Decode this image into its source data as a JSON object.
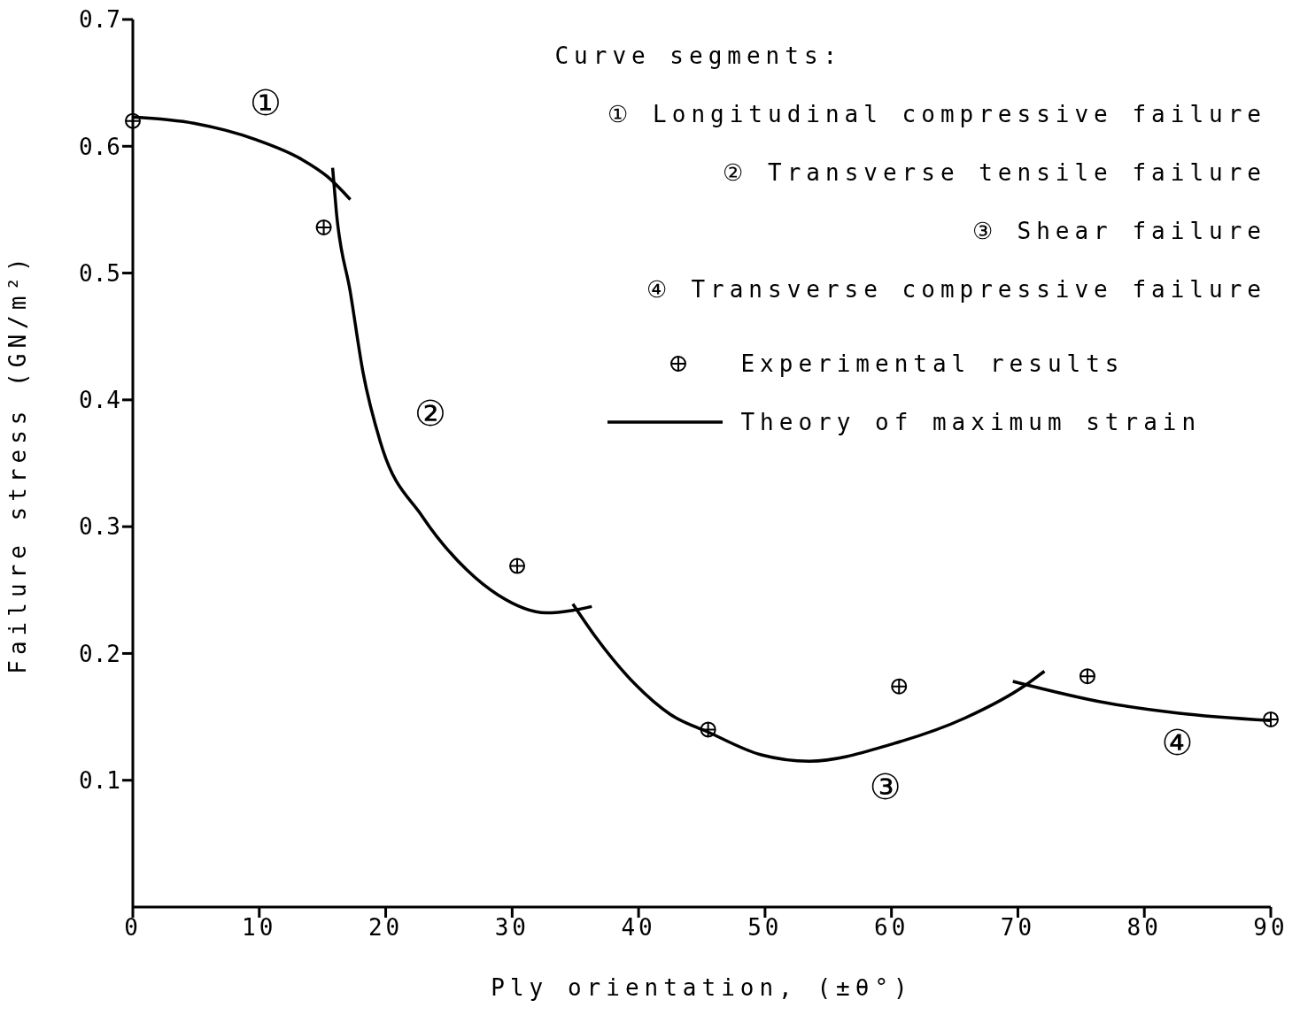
{
  "chart_data": {
    "type": "line",
    "xlabel": "Ply orientation, (±θ°)",
    "ylabel": "Failure stress (GN/m²)",
    "xlim": [
      0,
      90
    ],
    "xticks": [
      0,
      10,
      20,
      30,
      40,
      50,
      60,
      70,
      80,
      90
    ],
    "ylim": [
      0,
      0.7
    ],
    "yticks": [
      0.1,
      0.2,
      0.3,
      0.4,
      0.5,
      0.6,
      0.7
    ],
    "grid": false,
    "legend": "top right",
    "series": [
      {
        "name": "Experimental results",
        "type": "scatter",
        "marker": "cross",
        "color": "#000000",
        "x": [
          0,
          15.1,
          30.4,
          45.5,
          60.6,
          75.5,
          90
        ],
        "values": [
          0.62,
          0.536,
          0.269,
          0.14,
          0.174,
          0.182,
          0.148
        ]
      },
      {
        "name": "Theory of maximum strain",
        "color": "#000000",
        "x": [
          0,
          4.9,
          9.8,
          13.3,
          15.4,
          17.2
        ],
        "values": [
          0.623,
          0.618,
          0.605,
          0.59,
          0.576,
          0.558
        ]
      },
      {
        "color": "#000000",
        "x": [
          15.8,
          16.1,
          17.2,
          18.2,
          19.6,
          22.9,
          26.4,
          28.9,
          32.7,
          34.8,
          36.3
        ],
        "values": [
          0.583,
          0.548,
          0.485,
          0.422,
          0.366,
          0.308,
          0.266,
          0.246,
          0.232,
          0.234,
          0.237
        ]
      },
      {
        "color": "#000000",
        "x": [
          34.8,
          36.6,
          39.7,
          42.5,
          45.5,
          49.7,
          53.5,
          60.2,
          65.8,
          70.6,
          72.1
        ],
        "values": [
          0.239,
          0.213,
          0.176,
          0.152,
          0.138,
          0.12,
          0.115,
          0.129,
          0.149,
          0.175,
          0.186
        ]
      },
      {
        "color": "#000000",
        "x": [
          69.6,
          77,
          82.6,
          90
        ],
        "values": [
          0.178,
          0.161,
          0.153,
          0.147
        ]
      }
    ],
    "annotations": [
      "Curve segments:",
      "① Longitudinal compressive failure",
      "② Transverse tensile failure",
      "③ Shear failure",
      "④ Transverse compressive failure",
      "①",
      "②",
      "③",
      "④"
    ]
  }
}
